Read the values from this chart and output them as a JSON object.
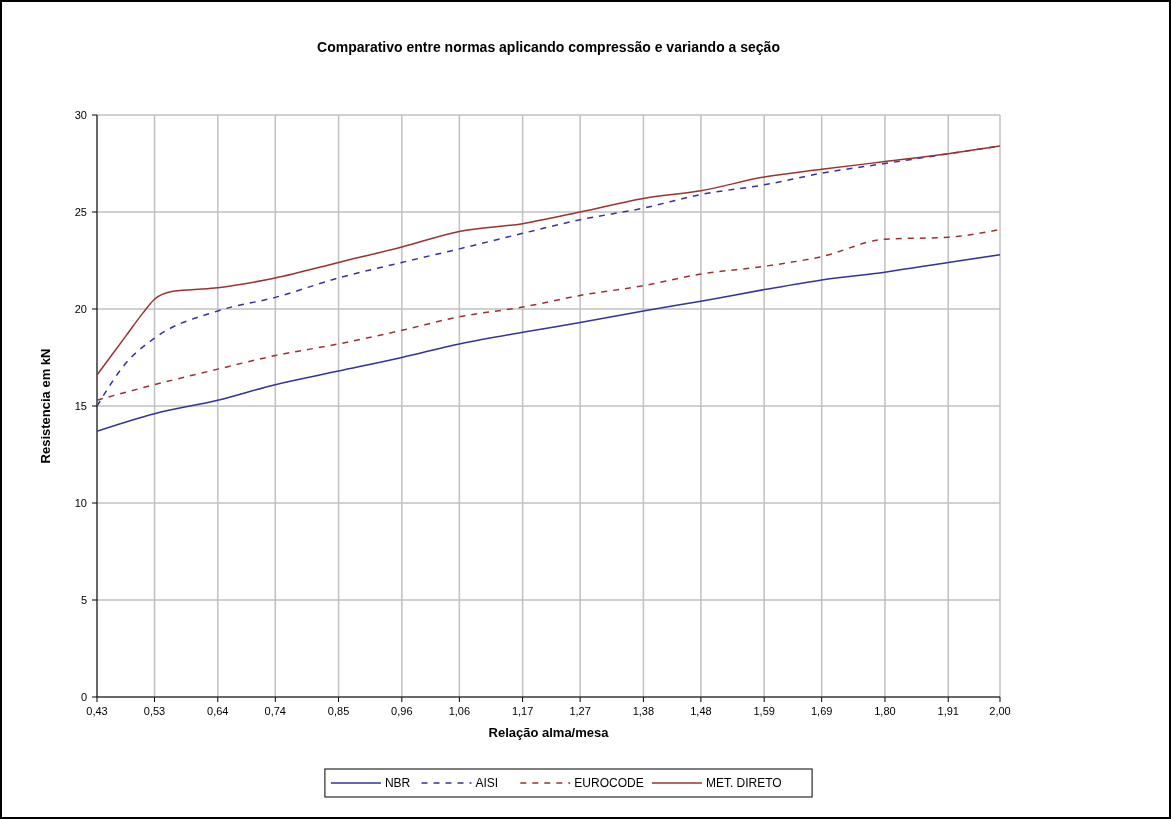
{
  "chart_data": {
    "type": "line",
    "title": "Comparativo entre normas aplicando compressão e variando a seção",
    "xlabel": "Relação alma/mesa",
    "ylabel": "Resistencia em kN",
    "xlim": [
      0.43,
      2.0
    ],
    "xticks": [
      {
        "value": 0.43,
        "label": "0,43"
      },
      {
        "value": 0.53,
        "label": "0,53"
      },
      {
        "value": 0.64,
        "label": "0,64"
      },
      {
        "value": 0.74,
        "label": "0,74"
      },
      {
        "value": 0.85,
        "label": "0,85"
      },
      {
        "value": 0.96,
        "label": "0,96"
      },
      {
        "value": 1.06,
        "label": "1,06"
      },
      {
        "value": 1.17,
        "label": "1,17"
      },
      {
        "value": 1.27,
        "label": "1,27"
      },
      {
        "value": 1.38,
        "label": "1,38"
      },
      {
        "value": 1.48,
        "label": "1,48"
      },
      {
        "value": 1.59,
        "label": "1,59"
      },
      {
        "value": 1.69,
        "label": "1,69"
      },
      {
        "value": 1.8,
        "label": "1,80"
      },
      {
        "value": 1.91,
        "label": "1,91"
      },
      {
        "value": 2.0,
        "label": "2,00"
      }
    ],
    "ylim": [
      0,
      30
    ],
    "yticks": [
      0,
      5,
      10,
      15,
      20,
      25,
      30
    ],
    "grid": true,
    "legend": "bottom",
    "series": [
      {
        "name": "NBR",
        "color": "#333399",
        "line_style": "solid",
        "x": [
          0.43,
          0.53,
          0.64,
          0.74,
          0.85,
          0.96,
          1.06,
          1.17,
          1.27,
          1.38,
          1.48,
          1.59,
          1.69,
          1.8,
          1.91,
          2.0
        ],
        "values": [
          13.7,
          14.6,
          15.3,
          16.1,
          16.8,
          17.5,
          18.2,
          18.8,
          19.3,
          19.9,
          20.4,
          21.0,
          21.5,
          21.9,
          22.4,
          22.8
        ]
      },
      {
        "name": "AISI",
        "color": "#333399",
        "line_style": "dashed",
        "x": [
          0.43,
          0.48,
          0.53,
          0.64,
          0.74,
          0.85,
          0.96,
          1.06,
          1.17,
          1.27,
          1.38,
          1.48,
          1.59,
          1.69,
          1.8,
          1.91,
          2.0
        ],
        "values": [
          15.0,
          17.2,
          18.5,
          19.9,
          20.6,
          21.6,
          22.4,
          23.1,
          23.9,
          24.6,
          25.2,
          25.9,
          26.4,
          27.0,
          27.5,
          28.0,
          28.4
        ]
      },
      {
        "name": "EUROCODE",
        "color": "#993333",
        "line_style": "dashed",
        "x": [
          0.43,
          0.53,
          0.64,
          0.74,
          0.85,
          0.96,
          1.06,
          1.17,
          1.27,
          1.38,
          1.48,
          1.59,
          1.69,
          1.8,
          1.91,
          2.0
        ],
        "values": [
          15.3,
          16.1,
          16.9,
          17.6,
          18.2,
          18.9,
          19.6,
          20.1,
          20.7,
          21.2,
          21.8,
          22.2,
          22.7,
          23.6,
          23.7,
          24.1
        ]
      },
      {
        "name": "MET. DIRETO",
        "color": "#993333",
        "line_style": "solid",
        "x": [
          0.43,
          0.48,
          0.51,
          0.53,
          0.56,
          0.6,
          0.64,
          0.74,
          0.85,
          0.96,
          1.06,
          1.17,
          1.27,
          1.38,
          1.48,
          1.59,
          1.69,
          1.8,
          1.91,
          2.0
        ],
        "values": [
          16.6,
          18.6,
          19.8,
          20.5,
          20.9,
          21.0,
          21.1,
          21.6,
          22.4,
          23.2,
          24.0,
          24.4,
          25.0,
          25.7,
          26.1,
          26.8,
          27.2,
          27.6,
          28.0,
          28.4
        ]
      }
    ]
  }
}
